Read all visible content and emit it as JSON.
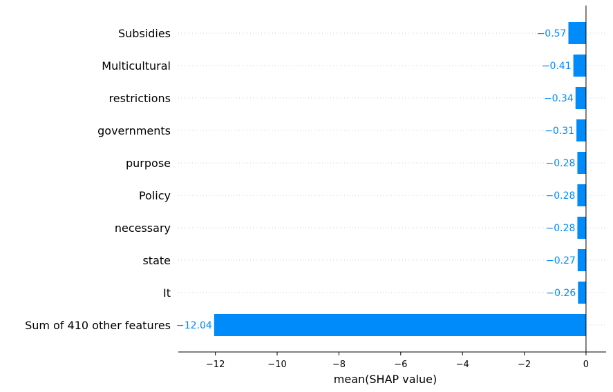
{
  "chart_data": {
    "type": "bar",
    "orientation": "horizontal",
    "categories": [
      "Subsidies",
      "Multicultural",
      "restrictions",
      "governments",
      "purpose",
      "Policy",
      "necessary",
      "state",
      "It",
      "Sum of 410 other features"
    ],
    "values": [
      -0.57,
      -0.41,
      -0.34,
      -0.31,
      -0.28,
      -0.28,
      -0.28,
      -0.27,
      -0.26,
      -12.04
    ],
    "value_labels": [
      "−0.57",
      "−0.41",
      "−0.34",
      "−0.31",
      "−0.28",
      "−0.28",
      "−0.28",
      "−0.27",
      "−0.26",
      "−12.04"
    ],
    "xlabel": "mean(SHAP value)",
    "xlim": [
      -13.2,
      0.65
    ],
    "xticks": [
      -12,
      -10,
      -8,
      -6,
      -4,
      -2,
      0
    ],
    "xtick_labels": [
      "−12",
      "−10",
      "−8",
      "−6",
      "−4",
      "−2",
      "0"
    ],
    "grid": "dotted horizontal guides per feature",
    "colors": {
      "bar": "#008bfb",
      "label": "#008bfb",
      "guide": "#cccccc",
      "axis": "#000000"
    }
  }
}
